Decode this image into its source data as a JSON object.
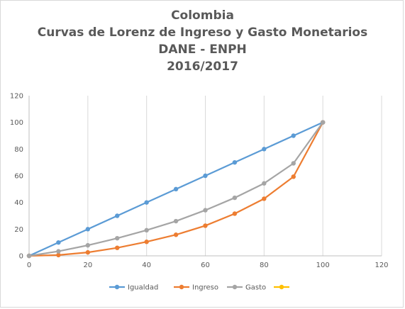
{
  "chart_data": {
    "type": "line",
    "title_lines": [
      "Colombia",
      "Curvas de Lorenz de Ingreso y Gasto Monetarios",
      "DANE - ENPH",
      "2016/2017"
    ],
    "xlabel": "",
    "ylabel": "",
    "xlim": [
      0,
      120
    ],
    "ylim": [
      0,
      120
    ],
    "x_ticks": [
      "0",
      "20",
      "40",
      "60",
      "80",
      "100",
      "120"
    ],
    "y_ticks": [
      "0",
      "20",
      "40",
      "60",
      "80",
      "100",
      "120"
    ],
    "grid": "vertical",
    "legend_position": "bottom",
    "series": [
      {
        "name": "Igualdad",
        "color": "#5b9bd5",
        "x": [
          0,
          10,
          20,
          30,
          40,
          50,
          60,
          70,
          80,
          90,
          100
        ],
        "y": [
          0,
          10,
          20,
          30,
          40,
          50,
          60,
          70,
          80,
          90,
          100
        ]
      },
      {
        "name": "Ingreso",
        "color": "#ed7d31",
        "x": [
          0,
          10,
          20,
          30,
          40,
          50,
          60,
          70,
          80,
          90,
          100
        ],
        "y": [
          0,
          0.6,
          2.6,
          6,
          10.5,
          15.8,
          22.6,
          31.6,
          42.8,
          59.3,
          100
        ]
      },
      {
        "name": "Gasto",
        "color": "#a5a5a5",
        "x": [
          0,
          10,
          20,
          30,
          40,
          50,
          60,
          70,
          80,
          90,
          100
        ],
        "y": [
          0,
          3.4,
          7.9,
          13.2,
          19.2,
          26,
          34.2,
          43.5,
          54.3,
          69.3,
          100
        ]
      },
      {
        "name": "",
        "color": "#ffc000",
        "x": [],
        "y": []
      }
    ]
  }
}
